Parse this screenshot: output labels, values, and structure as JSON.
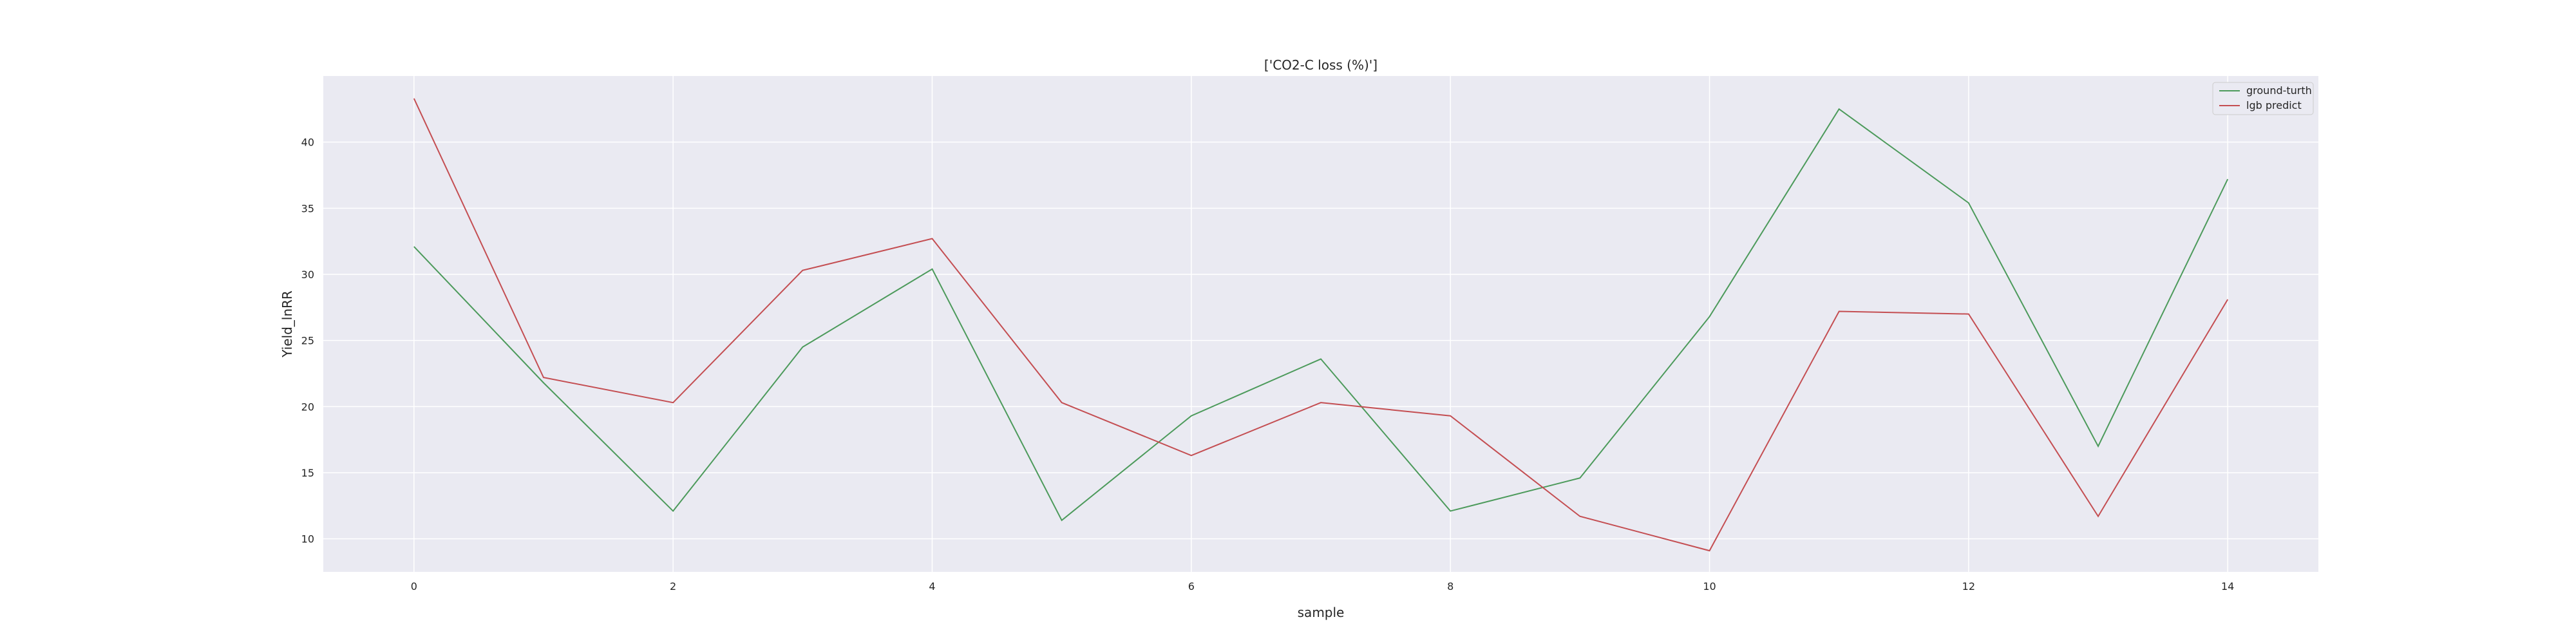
{
  "chart_data": {
    "type": "line",
    "title": "['CO2-C loss (%)']",
    "xlabel": "sample",
    "ylabel": "Yield_lnRR",
    "x": [
      0,
      1,
      2,
      3,
      4,
      5,
      6,
      7,
      8,
      9,
      10,
      11,
      12,
      13,
      14
    ],
    "xlim": [
      -0.7,
      14.7
    ],
    "ylim": [
      7.5,
      45.0
    ],
    "xticks": [
      "0",
      "2",
      "4",
      "6",
      "8",
      "10",
      "12",
      "14"
    ],
    "yticks": [
      "10",
      "15",
      "20",
      "25",
      "30",
      "35",
      "40"
    ],
    "grid": true,
    "legend_position": "top-right",
    "series": [
      {
        "name": "ground-turth",
        "color": "#4c9a5b",
        "values": [
          32.1,
          21.8,
          12.1,
          24.5,
          30.4,
          11.4,
          19.3,
          23.6,
          12.1,
          14.6,
          26.8,
          42.5,
          35.4,
          17.0,
          37.2
        ]
      },
      {
        "name": "lgb predict",
        "color": "#c44e52",
        "values": [
          43.3,
          22.2,
          20.3,
          30.3,
          32.7,
          20.3,
          16.3,
          20.3,
          19.3,
          11.7,
          9.1,
          27.2,
          27.0,
          11.7,
          28.1
        ]
      }
    ]
  }
}
